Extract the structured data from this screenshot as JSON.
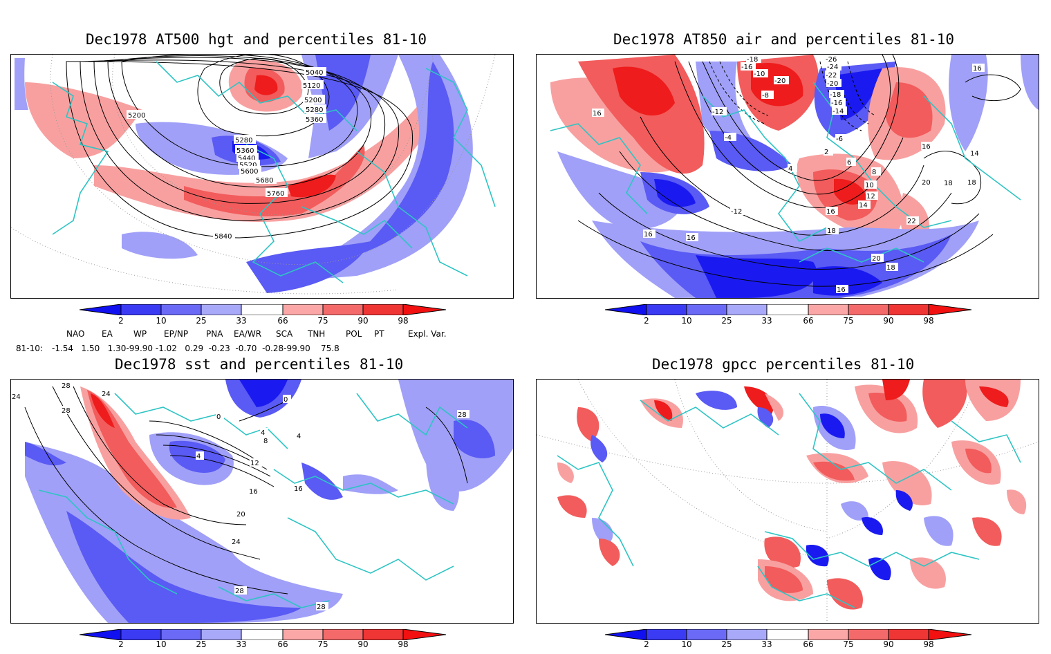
{
  "panels": [
    {
      "title": "Dec1978 AT500 hgt and percentiles 81-10",
      "contour_labels": [
        "5040",
        "5120",
        "5200",
        "5280",
        "5360",
        "5200",
        "5280",
        "5360",
        "5440",
        "5520",
        "5600",
        "5680",
        "5760",
        "5840"
      ]
    },
    {
      "title": "Dec1978 AT850 air and percentiles 81-10",
      "contour_labels": [
        "-18",
        "-16",
        "-10",
        "-20",
        "-26",
        "-24",
        "-22",
        "-20",
        "-18",
        "-16",
        "-14",
        "-12",
        "-8",
        "-4",
        "-6",
        "2",
        "4",
        "6",
        "8",
        "10",
        "12",
        "14",
        "16",
        "16",
        "16",
        "16",
        "18",
        "18",
        "16",
        "14",
        "18",
        "20",
        "22",
        "20",
        "18",
        "16",
        "-12",
        "16"
      ]
    },
    {
      "title": "Dec1978 sst and percentiles 81-10",
      "contour_labels": [
        "28",
        "24",
        "28",
        "24",
        "0",
        "0",
        "4",
        "4",
        "8",
        "4",
        "12",
        "16",
        "16",
        "20",
        "24",
        "28",
        "28",
        "28"
      ]
    },
    {
      "title": "Dec1978 gpcc percentiles 81-10",
      "contour_labels": []
    }
  ],
  "colorbar": {
    "ticks": [
      "2",
      "10",
      "25",
      "33",
      "66",
      "75",
      "90",
      "98"
    ],
    "colors": [
      "#1010f0",
      "#3b3bf4",
      "#6a6af6",
      "#a9a9fa",
      "#ffffff",
      "#fba7a7",
      "#f46a6a",
      "#f03535",
      "#f21010"
    ]
  },
  "indices": {
    "headers": [
      "NAO",
      "EA",
      "WP",
      "EP/NP",
      "PNA",
      "EA/WR",
      "SCA",
      "TNH",
      "POL",
      "PT",
      "Expl. Var."
    ],
    "row_label": "81-10:",
    "values_text": "-1.54   1.50   1.30-99.90 -1.02   0.29  -0.23  -0.70  -0.28-99.90    75.8"
  },
  "map_colors": {
    "coast": "#2ec4c4",
    "blue_strong": "#1a1af0",
    "blue_mid": "#5a5af4",
    "blue_light": "#a0a0f8",
    "red_light": "#f8a0a0",
    "red_mid": "#f25c5c",
    "red_strong": "#ee1c1c"
  }
}
